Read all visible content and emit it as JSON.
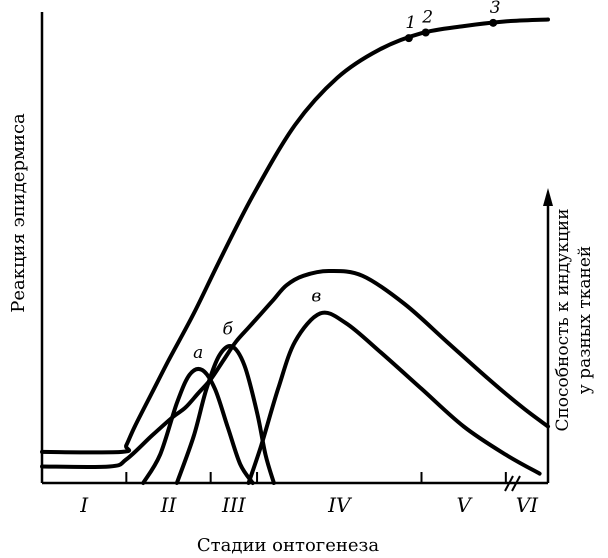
{
  "chart_data": {
    "type": "line",
    "title": "",
    "xlabel": "Стадии онтогенеза",
    "ylabel_left": "Реакция эпидермиса",
    "ylabel_right": [
      "Способность к индукции",
      "у разных тканей"
    ],
    "stage_labels": [
      "I",
      "II",
      "III",
      "IV",
      "V",
      "VI"
    ],
    "stage_ticks": [
      1,
      2,
      2.55,
      4.5,
      5.5
    ],
    "x_range": [
      0,
      6
    ],
    "y_range": [
      0,
      1
    ],
    "axis_break": "V–VI",
    "series": [
      {
        "role": "epidermis-reaction",
        "x": [
          0,
          0.95,
          1.0,
          1.1,
          1.3,
          1.5,
          1.8,
          2.1,
          2.5,
          3.0,
          3.5,
          4.0,
          4.5,
          5.0,
          5.5,
          6.0
        ],
        "y": [
          0.066,
          0.066,
          0.08,
          0.12,
          0.19,
          0.26,
          0.36,
          0.47,
          0.61,
          0.76,
          0.86,
          0.92,
          0.955,
          0.97,
          0.98,
          0.984
        ]
      },
      {
        "role": "tissue-induction",
        "x": [
          0,
          0.8,
          1.0,
          1.3,
          1.55,
          1.7,
          1.85,
          2.0,
          2.15,
          2.3,
          2.45,
          2.6,
          2.75,
          2.9,
          3.1,
          3.4,
          3.8,
          4.3,
          4.8,
          5.3,
          5.7,
          6.0
        ],
        "y": [
          0.035,
          0.035,
          0.05,
          0.1,
          0.14,
          0.16,
          0.19,
          0.22,
          0.26,
          0.3,
          0.33,
          0.36,
          0.39,
          0.42,
          0.44,
          0.45,
          0.44,
          0.38,
          0.3,
          0.22,
          0.16,
          0.12
        ]
      }
    ],
    "peaks": [
      {
        "label": "а",
        "x": [
          1.2,
          1.4,
          1.6,
          1.75,
          1.9,
          2.05,
          2.2,
          2.35,
          2.5
        ],
        "y": [
          0.0,
          0.06,
          0.17,
          0.23,
          0.24,
          0.2,
          0.12,
          0.04,
          0.0
        ]
      },
      {
        "label": "б",
        "x": [
          1.6,
          1.8,
          1.95,
          2.1,
          2.25,
          2.4,
          2.55,
          2.65,
          2.75
        ],
        "y": [
          0.0,
          0.1,
          0.2,
          0.27,
          0.29,
          0.25,
          0.15,
          0.06,
          0.0
        ]
      },
      {
        "label": "в",
        "x": [
          2.45,
          2.6,
          2.8,
          3.0,
          3.3,
          3.6,
          4.0,
          4.5,
          5.0,
          5.5,
          5.9
        ],
        "y": [
          0.0,
          0.08,
          0.2,
          0.3,
          0.36,
          0.34,
          0.28,
          0.2,
          0.12,
          0.06,
          0.02
        ]
      }
    ],
    "markers": [
      {
        "label": "1",
        "x": 4.35
      },
      {
        "label": "2",
        "x": 4.55
      },
      {
        "label": "3",
        "x": 5.35
      }
    ]
  }
}
